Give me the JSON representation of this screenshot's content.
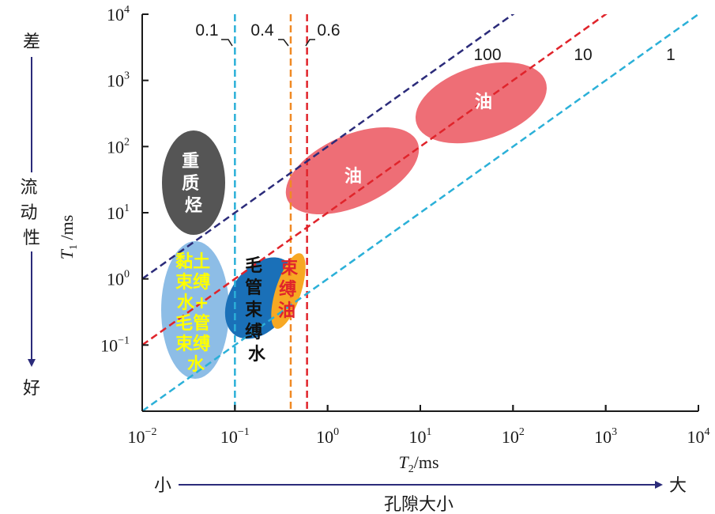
{
  "chart_data": {
    "type": "scatter",
    "x_scale": "log",
    "y_scale": "log",
    "xlim": [
      0.01,
      10000
    ],
    "ylim": [
      0.01,
      10000
    ],
    "x_ticks": [
      0.01,
      0.1,
      1,
      10,
      100,
      1000,
      10000
    ],
    "y_ticks": [
      0.1,
      1,
      10,
      100,
      1000,
      10000
    ],
    "x_tick_labels": [
      {
        "base": "10",
        "exp": "−2"
      },
      {
        "base": "10",
        "exp": "−1"
      },
      {
        "base": "10",
        "exp": "0"
      },
      {
        "base": "10",
        "exp": "1"
      },
      {
        "base": "10",
        "exp": "2"
      },
      {
        "base": "10",
        "exp": "3"
      },
      {
        "base": "10",
        "exp": "4"
      }
    ],
    "y_tick_labels": [
      {
        "base": "10",
        "exp": "−1"
      },
      {
        "base": "10",
        "exp": "0"
      },
      {
        "base": "10",
        "exp": "1"
      },
      {
        "base": "10",
        "exp": "2"
      },
      {
        "base": "10",
        "exp": "3"
      },
      {
        "base": "10",
        "exp": "4"
      }
    ],
    "xlabel": {
      "var": "T",
      "sub": "2",
      "unit": "/ms"
    },
    "ylabel": {
      "var": "T",
      "sub": "1",
      "unit": " /ms"
    },
    "grid": false,
    "vertical_lines": [
      {
        "x": 0.1,
        "label": "0.1",
        "color": "#2bb0d8"
      },
      {
        "x": 0.4,
        "label": "0.4",
        "color": "#f08a24"
      },
      {
        "x": 0.6,
        "label": "0.6",
        "color": "#e0242b"
      }
    ],
    "ratio_lines": [
      {
        "ratio": 100,
        "label": "100",
        "color": "#2b2b7a"
      },
      {
        "ratio": 10,
        "label": "10",
        "color": "#e0242b"
      },
      {
        "ratio": 1,
        "label": "1",
        "color": "#2bb0d8"
      }
    ],
    "regions": [
      {
        "label": [
          "重",
          "质",
          "烃"
        ],
        "x_center": 0.04,
        "y_center": 25,
        "color": "#555555",
        "text_color": "#ffffff"
      },
      {
        "label": [
          "黏土",
          "束缚",
          "水+",
          "毛管",
          "束缚",
          "水"
        ],
        "x_center": 0.04,
        "y_center": 0.3,
        "color": "#8dbde6",
        "text_color": "#ffff00"
      },
      {
        "label": [
          "毛",
          "管",
          "束",
          "缚",
          "水"
        ],
        "x_center": 0.25,
        "y_center": 0.4,
        "color": "#1a70b8",
        "text_color": "#111111"
      },
      {
        "label": [
          "束",
          "缚",
          "油"
        ],
        "x_center": 0.45,
        "y_center": 0.6,
        "color": "#f7a823",
        "text_color": "#e0242b"
      },
      {
        "label": [
          "油"
        ],
        "x_center": 3.5,
        "y_center": 30,
        "color": "#ee6e76",
        "text_color": "#ffffff"
      },
      {
        "label": [
          "油"
        ],
        "x_center": 35,
        "y_center": 300,
        "color": "#ee6e76",
        "text_color": "#ffffff"
      }
    ]
  },
  "y_side": {
    "top": "差",
    "middle": [
      "流",
      "动",
      "性"
    ],
    "bottom": "好"
  },
  "x_side": {
    "left": "小",
    "right": "大",
    "caption": "孔隙大小"
  },
  "colors": {
    "arrow": "#2b2b7a",
    "axis": "#1a1a1a"
  }
}
